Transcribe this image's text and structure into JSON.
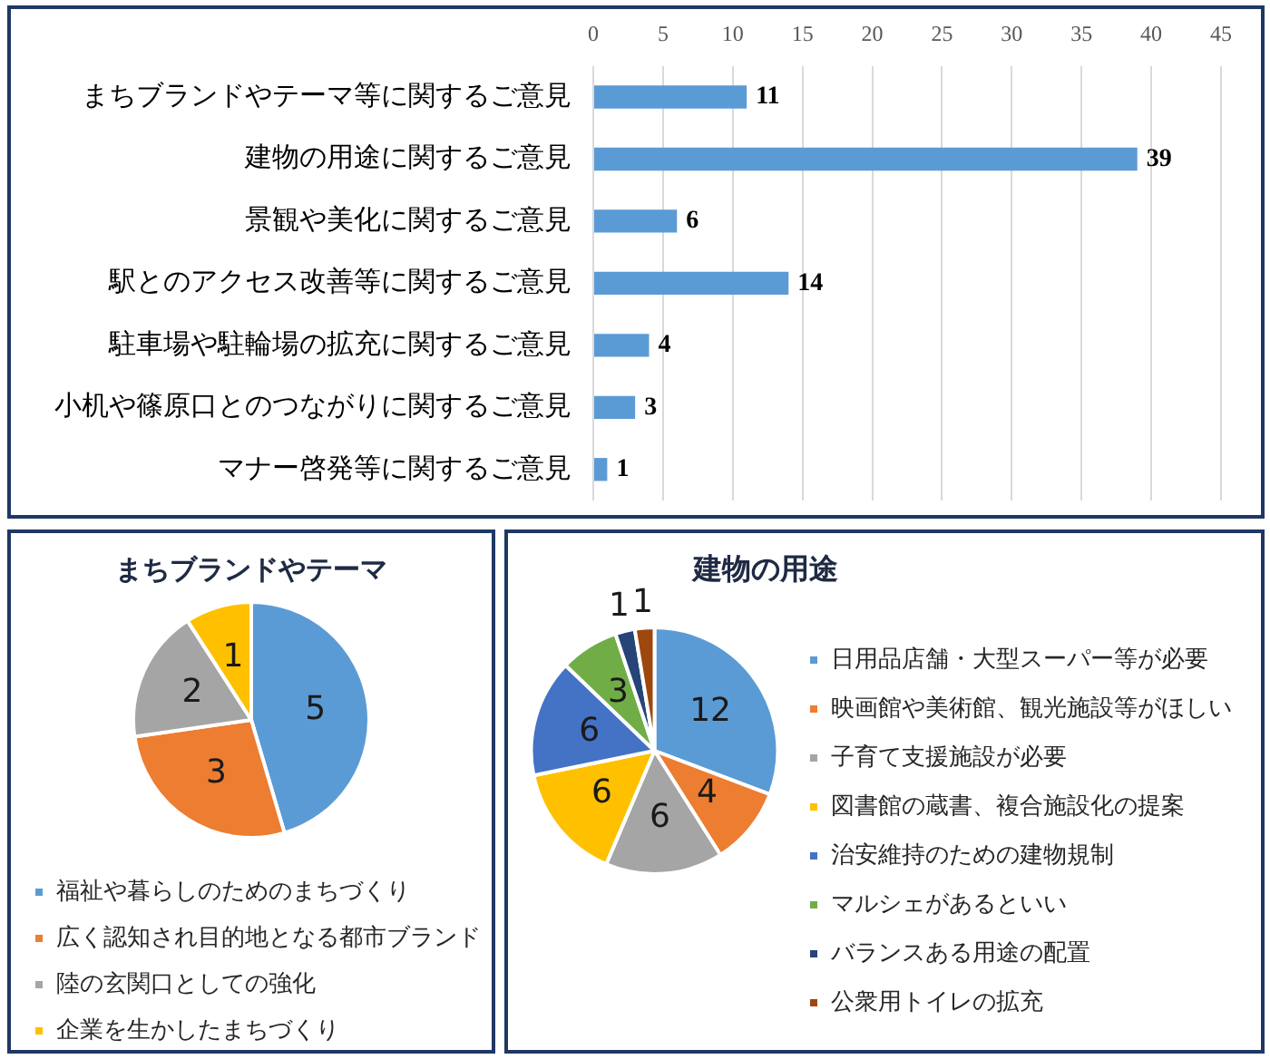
{
  "chart_data": [
    {
      "type": "bar",
      "orientation": "horizontal",
      "categories": [
        "まちブランドやテーマ等に関するご意見",
        "建物の用途に関するご意見",
        "景観や美化に関するご意見",
        "駅とのアクセス改善等に関するご意見",
        "駐車場や駐輪場の拡充に関するご意見",
        "小机や篠原口とのつながりに関するご意見",
        "マナー啓発等に関するご意見"
      ],
      "values": [
        11,
        39,
        6,
        14,
        4,
        3,
        1
      ],
      "color": "#5b9bd5",
      "xlim": [
        0,
        45
      ],
      "xticks": [
        0,
        5,
        10,
        15,
        20,
        25,
        30,
        35,
        40,
        45
      ],
      "grid": "x",
      "data_labels": true
    },
    {
      "type": "pie",
      "title": "まちブランドやテーマ",
      "categories": [
        "福祉や暮らしのためのまちづくり",
        "広く認知され目的地となる都市ブランド",
        "陸の玄関口としての強化",
        "企業を生かしたまちづくり"
      ],
      "values": [
        5,
        3,
        2,
        1
      ],
      "colors": [
        "#5b9bd5",
        "#ed7d31",
        "#a5a5a5",
        "#ffc000"
      ],
      "data_labels": true,
      "legend": "bottom"
    },
    {
      "type": "pie",
      "title": "建物の用途",
      "categories": [
        "日用品店舗・大型スーパー等が必要",
        "映画館や美術館、観光施設等がほしい",
        "子育て支援施設が必要",
        "図書館の蔵書、複合施設化の提案",
        "治安維持のための建物規制",
        "マルシェがあるといい",
        "バランスある用途の配置",
        "公衆用トイレの拡充"
      ],
      "values": [
        12,
        4,
        6,
        6,
        6,
        3,
        1,
        1
      ],
      "colors": [
        "#5b9bd5",
        "#ed7d31",
        "#a5a5a5",
        "#ffc000",
        "#4472c4",
        "#70ad47",
        "#264478",
        "#9e480e"
      ],
      "data_labels": true,
      "legend": "right"
    }
  ]
}
